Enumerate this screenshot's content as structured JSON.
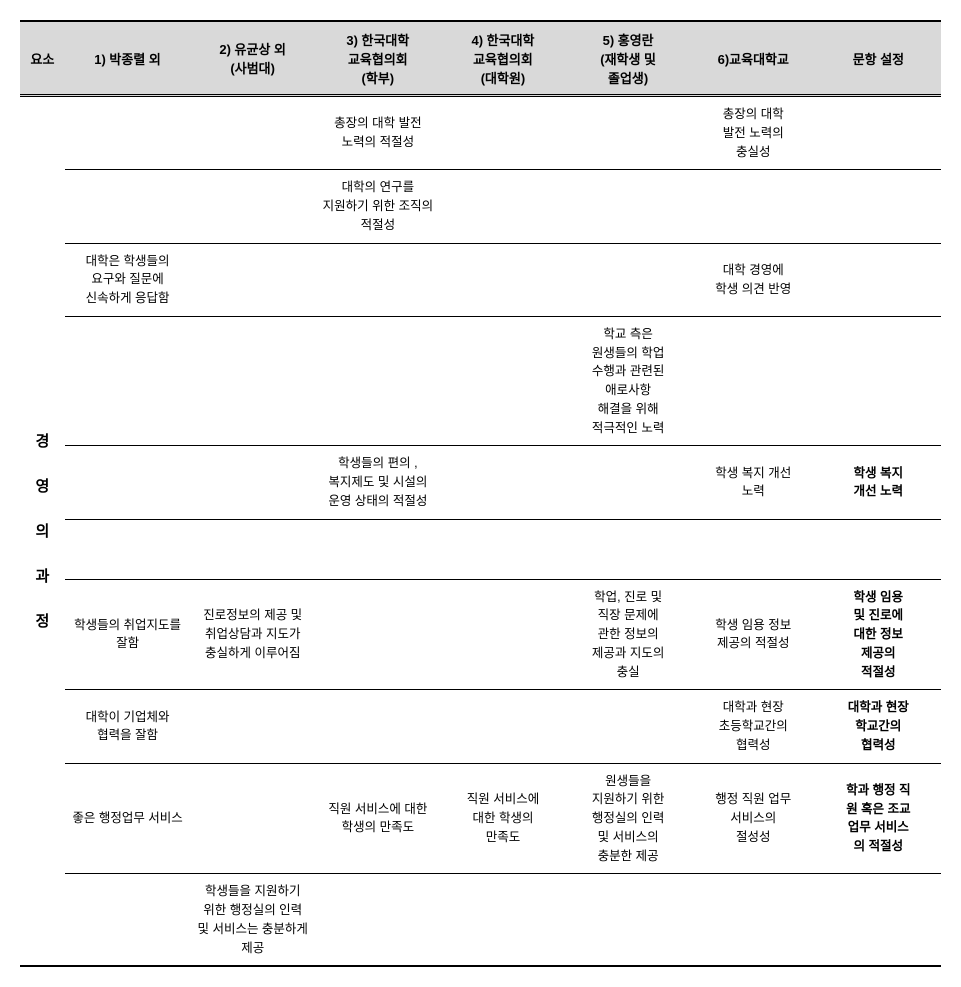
{
  "header": {
    "element": "요소",
    "col1": "1) 박종렬 외",
    "col2": "2) 유균상 외\n(사범대)",
    "col3": "3) 한국대학\n교육협의회\n(학부)",
    "col4": "4) 한국대학\n교육협의회\n(대학원)",
    "col5": "5) 홍영란\n(재학생 및\n졸업생)",
    "col6": "6)교육대학교",
    "col7": "문항 설정"
  },
  "vertical_label": [
    "경",
    "영",
    "의",
    "과",
    "정"
  ],
  "rows": [
    {
      "col1": "",
      "col2": "",
      "col3": "총장의 대학 발전\n노력의 적절성",
      "col4": "",
      "col5": "",
      "col6": "총장의 대학\n발전 노력의\n충실성",
      "col7": ""
    },
    {
      "col1": "",
      "col2": "",
      "col3": "대학의 연구를\n지원하기 위한 조직의\n적절성",
      "col4": "",
      "col5": "",
      "col6": "",
      "col7": ""
    },
    {
      "col1": "대학은 학생들의\n요구와 질문에\n신속하게 응답함",
      "col2": "",
      "col3": "",
      "col4": "",
      "col5": "",
      "col6": "대학 경영에\n학생 의견 반영",
      "col7": ""
    },
    {
      "col1": "",
      "col2": "",
      "col3": "",
      "col4": "",
      "col5": "학교 측은\n원생들의 학업\n수행과 관련된\n애로사항\n해결을 위해\n적극적인 노력",
      "col6": "",
      "col7": ""
    },
    {
      "col1": "",
      "col2": "",
      "col3": "학생들의 편의 ,\n복지제도 및 시설의\n운영 상태의 적절성",
      "col4": "",
      "col5": "",
      "col6": "학생 복지 개선\n노력",
      "col7": "학생 복지\n개선 노력"
    },
    {
      "col1": "",
      "col2": "",
      "col3": "",
      "col4": "",
      "col5": "",
      "col6": "",
      "col7": ""
    },
    {
      "col1": "학생들의 취업지도를\n잘함",
      "col2": "진로정보의 제공 및\n취업상담과 지도가\n충실하게 이루어짐",
      "col3": "",
      "col4": "",
      "col5": "학업, 진로 및\n직장 문제에\n관한 정보의\n제공과 지도의\n충실",
      "col6": "학생 임용 정보\n제공의 적절성",
      "col7": "학생 임용\n및 진로에\n대한 정보\n제공의\n적절성"
    },
    {
      "col1": "대학이 기업체와\n협력을 잘함",
      "col2": "",
      "col3": "",
      "col4": "",
      "col5": "",
      "col6": "대학과 현장\n초등학교간의\n협력성",
      "col7": "대학과 현장\n학교간의\n협력성"
    },
    {
      "col1": "좋은 행정업무 서비스",
      "col2": "",
      "col3": "직원 서비스에 대한\n학생의 만족도",
      "col4": "직원 서비스에\n대한 학생의\n만족도",
      "col5": "원생들을\n지원하기 위한\n행정실의 인력\n및 서비스의\n충분한 제공",
      "col6": "행정 직원 업무\n서비스의\n절성성",
      "col7": "학과 행정 직\n원 혹은 조교\n업무 서비스\n의 적절성"
    },
    {
      "col1": "",
      "col2": "학생들을 지원하기\n위한 행정실의 인력\n및 서비스는 충분하게\n제공",
      "col3": "",
      "col4": "",
      "col5": "",
      "col6": "",
      "col7": ""
    }
  ],
  "styling": {
    "header_bg": "#d9d9d9",
    "border_color": "#000000",
    "font_size_header": 13,
    "font_size_body": 12.5,
    "font_size_vertical": 15,
    "bold_col7": true
  }
}
